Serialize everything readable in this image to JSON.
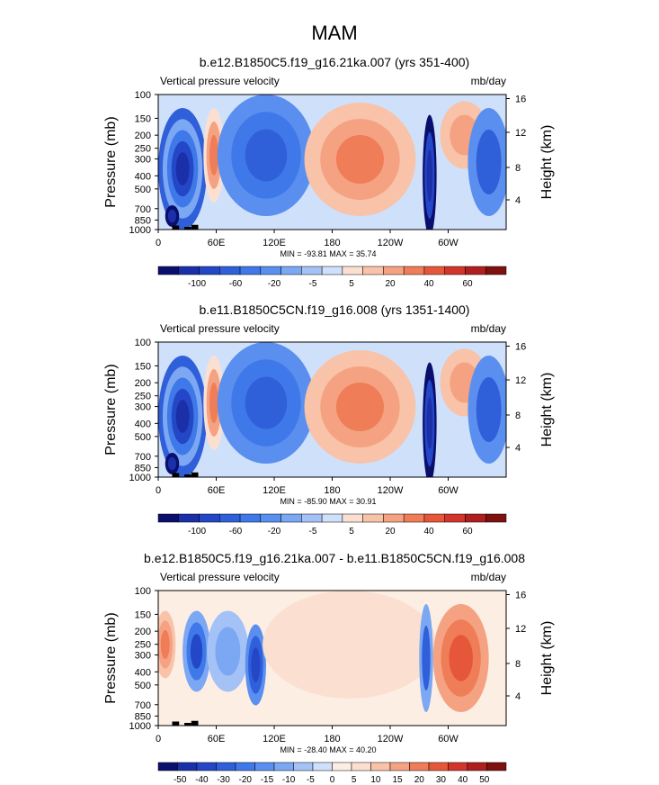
{
  "figure_title": "MAM",
  "chart_data": [
    {
      "type": "heatmap",
      "title": "b.e12.B1850C5.f19_g16.21ka.007 (yrs 351-400)",
      "left_label": "Vertical pressure velocity",
      "right_label": "mb/day",
      "ylabel": "Pressure (mb)",
      "y2label": "Height (km)",
      "yticks": [
        "100",
        "150",
        "200",
        "250",
        "300",
        "400",
        "500",
        "700",
        "850",
        "1000"
      ],
      "y2ticks": [
        "16",
        "12",
        "8",
        "4"
      ],
      "xticks": [
        "0",
        "60E",
        "120E",
        "180",
        "120W",
        "60W"
      ],
      "stats": "MIN = -93.81  MAX =  35.74",
      "min": -93.81,
      "max": 35.74,
      "colorbar_labels": [
        "-100",
        "-60",
        "-20",
        "-5",
        "5",
        "20",
        "40",
        "60"
      ],
      "colorbar_colors": [
        "#0a0f6e",
        "#1a2fa8",
        "#2347c6",
        "#2f5fd9",
        "#3f78e8",
        "#5a8ff0",
        "#7ba7f3",
        "#a4c2f6",
        "#cfe0fa",
        "#fbe0d2",
        "#f8c3a8",
        "#f5a282",
        "#ef7d58",
        "#e6573a",
        "#d2352a",
        "#b01f1f",
        "#7e1010"
      ]
    },
    {
      "type": "heatmap",
      "title": "b.e11.B1850C5CN.f19_g16.008 (yrs 1351-1400)",
      "left_label": "Vertical pressure velocity",
      "right_label": "mb/day",
      "ylabel": "Pressure (mb)",
      "y2label": "Height (km)",
      "yticks": [
        "100",
        "150",
        "200",
        "250",
        "300",
        "400",
        "500",
        "700",
        "850",
        "1000"
      ],
      "y2ticks": [
        "16",
        "12",
        "8",
        "4"
      ],
      "xticks": [
        "0",
        "60E",
        "120E",
        "180",
        "120W",
        "60W"
      ],
      "stats": "MIN = -85.90  MAX =  30.91",
      "min": -85.9,
      "max": 30.91,
      "colorbar_labels": [
        "-100",
        "-60",
        "-20",
        "-5",
        "5",
        "20",
        "40",
        "60"
      ],
      "colorbar_colors": [
        "#0a0f6e",
        "#1a2fa8",
        "#2347c6",
        "#2f5fd9",
        "#3f78e8",
        "#5a8ff0",
        "#7ba7f3",
        "#a4c2f6",
        "#cfe0fa",
        "#fbe0d2",
        "#f8c3a8",
        "#f5a282",
        "#ef7d58",
        "#e6573a",
        "#d2352a",
        "#b01f1f",
        "#7e1010"
      ]
    },
    {
      "type": "heatmap",
      "title": "b.e12.B1850C5.f19_g16.21ka.007 - b.e11.B1850C5CN.f19_g16.008",
      "left_label": "Vertical pressure velocity",
      "right_label": "mb/day",
      "ylabel": "Pressure (mb)",
      "y2label": "Height (km)",
      "yticks": [
        "100",
        "150",
        "200",
        "250",
        "300",
        "400",
        "500",
        "700",
        "850",
        "1000"
      ],
      "y2ticks": [
        "16",
        "12",
        "8",
        "4"
      ],
      "xticks": [
        "0",
        "60E",
        "120E",
        "180",
        "120W",
        "60W"
      ],
      "stats": "MIN = -28.40  MAX =  40.20",
      "min": -28.4,
      "max": 40.2,
      "colorbar_labels": [
        "-50",
        "-40",
        "-30",
        "-20",
        "-15",
        "-10",
        "-5",
        "0",
        "5",
        "10",
        "15",
        "20",
        "30",
        "40",
        "50"
      ],
      "colorbar_colors": [
        "#0a0f6e",
        "#1a2fa8",
        "#2347c6",
        "#2f5fd9",
        "#3f78e8",
        "#5a8ff0",
        "#7ba7f3",
        "#a4c2f6",
        "#cfe0fa",
        "#fdeee4",
        "#fbe0d2",
        "#f8c3a8",
        "#f5a282",
        "#ef7d58",
        "#e6573a",
        "#d2352a",
        "#b01f1f",
        "#7e1010"
      ]
    }
  ]
}
